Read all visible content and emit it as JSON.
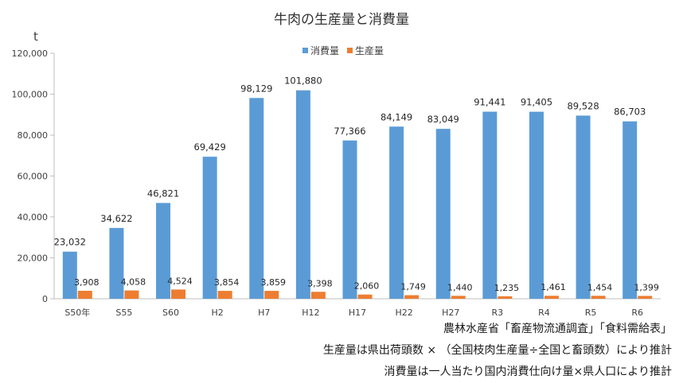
{
  "chart_data": {
    "type": "bar",
    "title": "牛肉の生産量と消費量",
    "ylabel": "t",
    "ylim": [
      0,
      120000
    ],
    "yticks": [
      0,
      20000,
      40000,
      60000,
      80000,
      100000,
      120000
    ],
    "ytick_labels": [
      "0",
      "20,000",
      "40,000",
      "60,000",
      "80,000",
      "100,000",
      "120,000"
    ],
    "legend_position": "top-center",
    "categories": [
      "S50年",
      "S55",
      "S60",
      "H2",
      "H7",
      "H12",
      "H17",
      "H22",
      "H27",
      "R3",
      "R4",
      "R5",
      "R6"
    ],
    "series": [
      {
        "name": "消費量",
        "color": "#5B9BD5",
        "values": [
          23032,
          34622,
          46821,
          69429,
          98129,
          101880,
          77366,
          84149,
          83049,
          91441,
          91405,
          89528,
          86703
        ],
        "labels": [
          "23,032",
          "34,622",
          "46,821",
          "69,429",
          "98,129",
          "101,880",
          "77,366",
          "84,149",
          "83,049",
          "91,441",
          "91,405",
          "89,528",
          "86,703"
        ]
      },
      {
        "name": "生産量",
        "color": "#ED7D31",
        "values": [
          3908,
          4058,
          4524,
          3854,
          3859,
          3398,
          2060,
          1749,
          1440,
          1235,
          1461,
          1454,
          1399
        ],
        "labels": [
          "3,908",
          "4,058",
          "4,524",
          "3,854",
          "3,859",
          "3,398",
          "2,060",
          "1,749",
          "1,440",
          "1,235",
          "1,461",
          "1,454",
          "1,399"
        ]
      }
    ]
  },
  "notes": {
    "source": "農林水産省「畜産物流通調査」「食料需給表」",
    "production_method": "生産量は県出荷頭数 × （全国枝肉生産量÷全国と畜頭数）により推計",
    "consumption_method": "消費量は一人当たり国内消費仕向け量×県人口により推計"
  }
}
